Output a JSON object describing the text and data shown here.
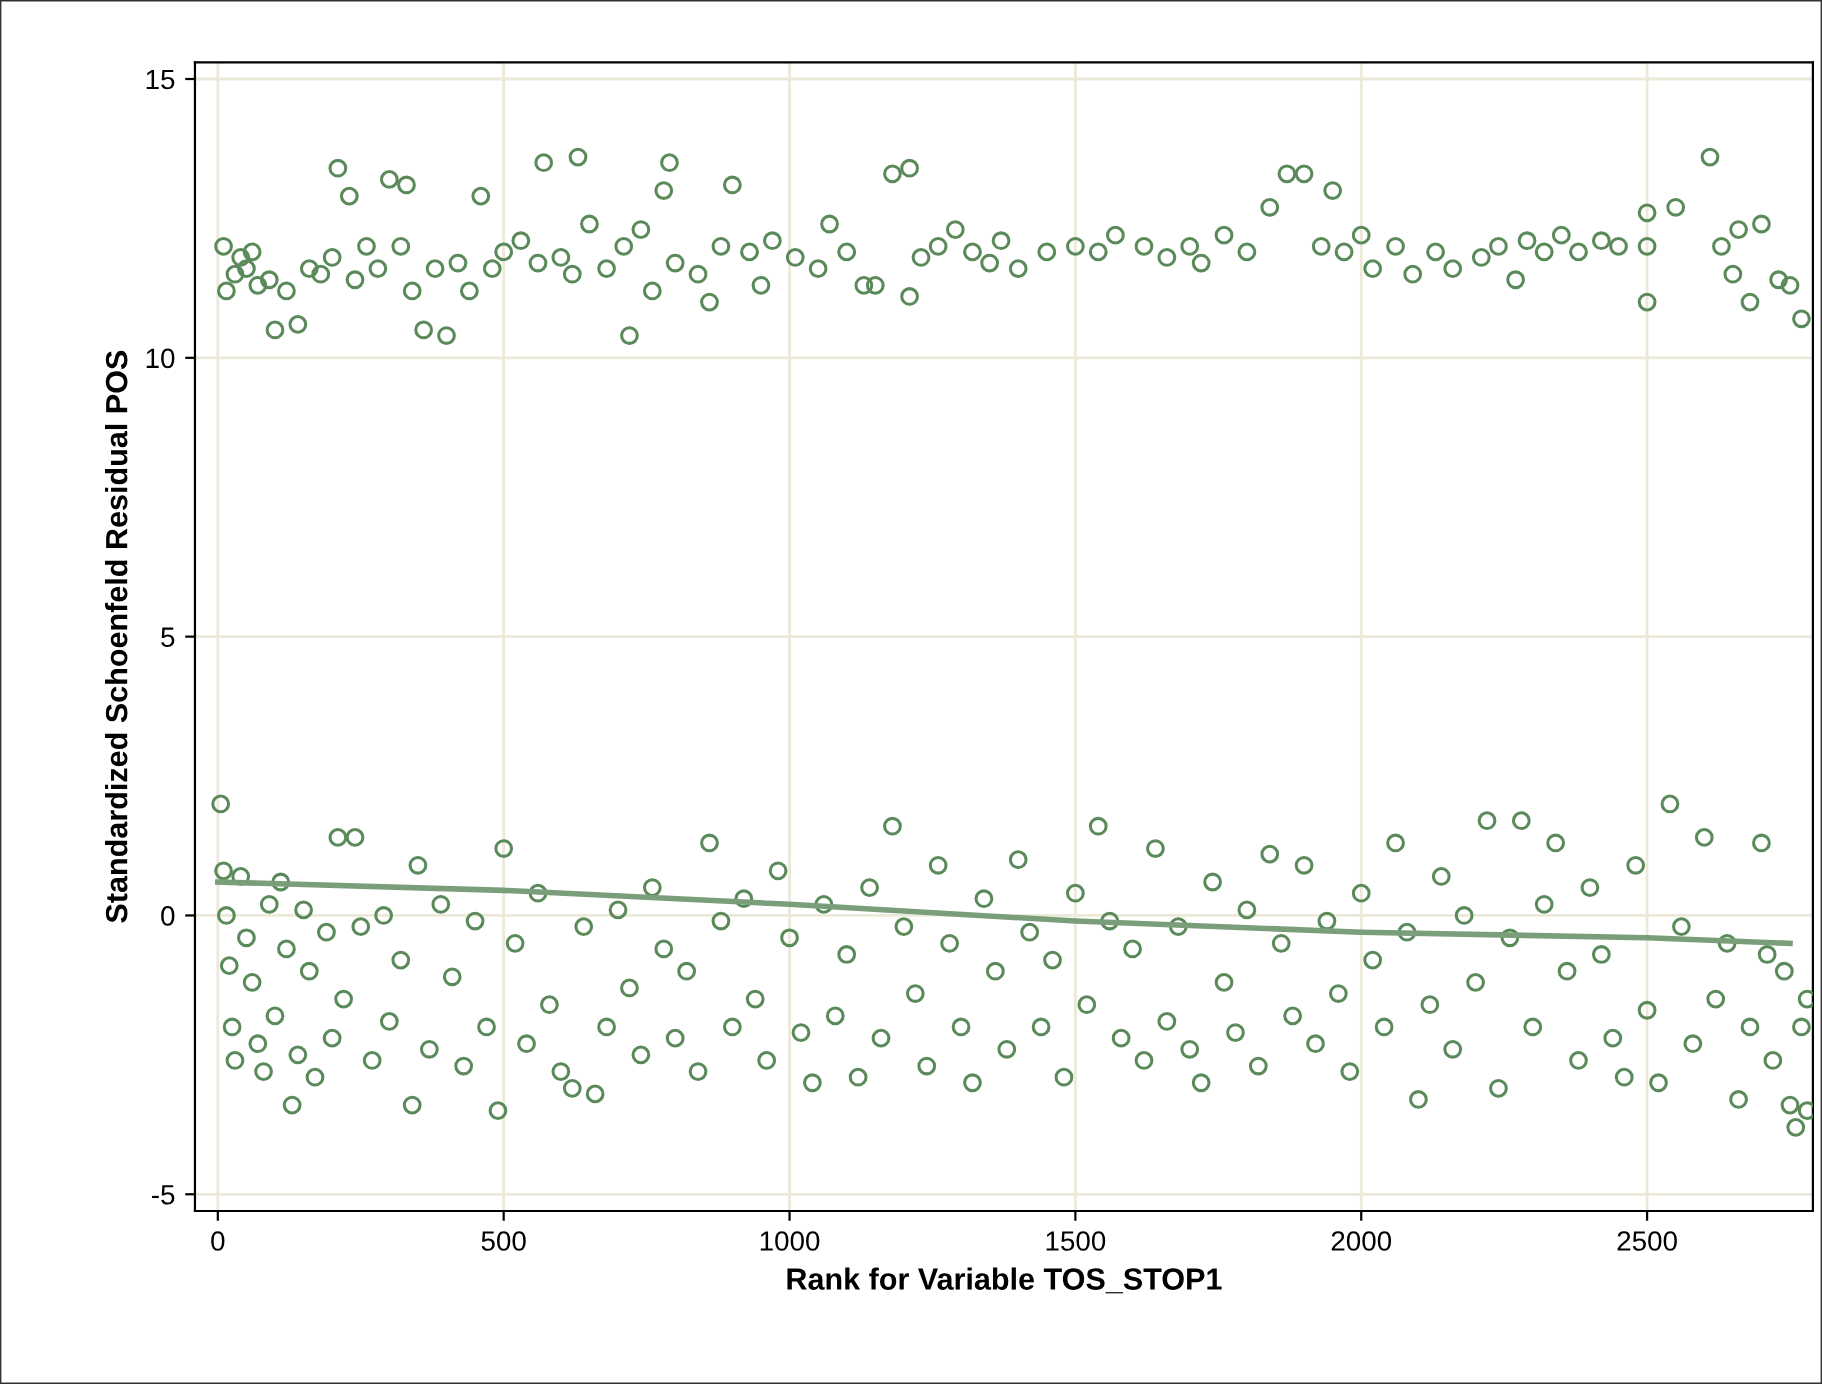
{
  "chart_data": {
    "type": "scatter",
    "xlabel": "Rank for Variable TOS_STOP1",
    "ylabel": "Standardized Schoenfeld Residual POS",
    "xlim": [
      -40,
      2790
    ],
    "ylim": [
      -5.3,
      15.3
    ],
    "xticks": [
      0,
      500,
      1000,
      1500,
      2000,
      2500
    ],
    "yticks": [
      -5,
      0,
      5,
      10,
      15
    ],
    "grid": true,
    "marker": "circle",
    "series": [
      {
        "color": "#5a8a5a",
        "x": [
          10,
          15,
          30,
          40,
          50,
          60,
          70,
          90,
          100,
          120,
          140,
          160,
          180,
          200,
          210,
          230,
          240,
          260,
          280,
          300,
          320,
          330,
          340,
          360,
          380,
          400,
          420,
          440,
          460,
          480,
          500,
          530,
          560,
          570,
          600,
          620,
          630,
          650,
          680,
          710,
          720,
          740,
          760,
          780,
          790,
          800,
          840,
          860,
          880,
          900,
          930,
          950,
          970,
          1010,
          1050,
          1070,
          1100,
          1130,
          1150,
          1180,
          1210,
          1210,
          1230,
          1260,
          1290,
          1320,
          1350,
          1370,
          1400,
          1450,
          1500,
          1540,
          1570,
          1620,
          1660,
          1700,
          1720,
          1760,
          1800,
          1840,
          1870,
          1900,
          1930,
          1950,
          1970,
          2000,
          2020,
          2060,
          2090,
          2130,
          2160,
          2210,
          2240,
          2270,
          2290,
          2320,
          2350,
          2380,
          2420,
          2450,
          2500,
          2500,
          2500,
          2550,
          2610,
          2630,
          2650,
          2660,
          2680,
          2700,
          2730,
          2750,
          2770
        ],
        "values": [
          12.0,
          11.2,
          11.5,
          11.8,
          11.6,
          11.9,
          11.3,
          11.4,
          10.5,
          11.2,
          10.6,
          11.6,
          11.5,
          11.8,
          13.4,
          12.9,
          11.4,
          12.0,
          11.6,
          13.2,
          12.0,
          13.1,
          11.2,
          10.5,
          11.6,
          10.4,
          11.7,
          11.2,
          12.9,
          11.6,
          11.9,
          12.1,
          11.7,
          13.5,
          11.8,
          11.5,
          13.6,
          12.4,
          11.6,
          12.0,
          10.4,
          12.3,
          11.2,
          13.0,
          13.5,
          11.7,
          11.5,
          11.0,
          12.0,
          13.1,
          11.9,
          11.3,
          12.1,
          11.8,
          11.6,
          12.4,
          11.9,
          11.3,
          11.3,
          13.3,
          13.4,
          11.1,
          11.8,
          12.0,
          12.3,
          11.9,
          11.7,
          12.1,
          11.6,
          11.9,
          12.0,
          11.9,
          12.2,
          12.0,
          11.8,
          12.0,
          11.7,
          12.2,
          11.9,
          12.7,
          13.3,
          13.3,
          12.0,
          13.0,
          11.9,
          12.2,
          11.6,
          12.0,
          11.5,
          11.9,
          11.6,
          11.8,
          12.0,
          11.4,
          12.1,
          11.9,
          12.2,
          11.9,
          12.1,
          12.0,
          12.6,
          11.0,
          12.0,
          12.7,
          13.6,
          12.0,
          11.5,
          12.3,
          11.0,
          12.4,
          11.4,
          11.3,
          10.7
        ]
      },
      {
        "color": "#5a8a5a",
        "x": [
          5,
          10,
          15,
          20,
          25,
          30,
          40,
          50,
          60,
          70,
          80,
          90,
          100,
          110,
          120,
          130,
          140,
          150,
          160,
          170,
          190,
          200,
          210,
          220,
          240,
          250,
          270,
          290,
          300,
          320,
          340,
          350,
          370,
          390,
          410,
          430,
          450,
          470,
          490,
          500,
          520,
          540,
          560,
          580,
          600,
          620,
          640,
          660,
          680,
          700,
          720,
          740,
          760,
          780,
          800,
          820,
          840,
          860,
          880,
          900,
          920,
          940,
          960,
          980,
          1000,
          1020,
          1040,
          1060,
          1080,
          1100,
          1120,
          1140,
          1160,
          1180,
          1200,
          1220,
          1240,
          1260,
          1280,
          1300,
          1320,
          1340,
          1360,
          1380,
          1400,
          1420,
          1440,
          1460,
          1480,
          1500,
          1520,
          1540,
          1560,
          1580,
          1600,
          1620,
          1640,
          1660,
          1680,
          1700,
          1720,
          1740,
          1760,
          1780,
          1800,
          1820,
          1840,
          1860,
          1880,
          1900,
          1920,
          1940,
          1960,
          1980,
          2000,
          2020,
          2040,
          2060,
          2080,
          2100,
          2120,
          2140,
          2160,
          2180,
          2200,
          2220,
          2240,
          2260,
          2280,
          2300,
          2320,
          2340,
          2360,
          2380,
          2400,
          2420,
          2440,
          2460,
          2480,
          2500,
          2520,
          2540,
          2560,
          2580,
          2600,
          2620,
          2640,
          2660,
          2680,
          2700,
          2710,
          2720,
          2740,
          2750,
          2760,
          2770,
          2780,
          2780
        ],
        "values": [
          2.0,
          0.8,
          0.0,
          -0.9,
          -2.0,
          -2.6,
          0.7,
          -0.4,
          -1.2,
          -2.3,
          -2.8,
          0.2,
          -1.8,
          0.6,
          -0.6,
          -3.4,
          -2.5,
          0.1,
          -1.0,
          -2.9,
          -0.3,
          -2.2,
          1.4,
          -1.5,
          1.4,
          -0.2,
          -2.6,
          0.0,
          -1.9,
          -0.8,
          -3.4,
          0.9,
          -2.4,
          0.2,
          -1.1,
          -2.7,
          -0.1,
          -2.0,
          -3.5,
          1.2,
          -0.5,
          -2.3,
          0.4,
          -1.6,
          -2.8,
          -3.1,
          -0.2,
          -3.2,
          -2.0,
          0.1,
          -1.3,
          -2.5,
          0.5,
          -0.6,
          -2.2,
          -1.0,
          -2.8,
          1.3,
          -0.1,
          -2.0,
          0.3,
          -1.5,
          -2.6,
          0.8,
          -0.4,
          -2.1,
          -3.0,
          0.2,
          -1.8,
          -0.7,
          -2.9,
          0.5,
          -2.2,
          1.6,
          -0.2,
          -1.4,
          -2.7,
          0.9,
          -0.5,
          -2.0,
          -3.0,
          0.3,
          -1.0,
          -2.4,
          1.0,
          -0.3,
          -2.0,
          -0.8,
          -2.9,
          0.4,
          -1.6,
          1.6,
          -0.1,
          -2.2,
          -0.6,
          -2.6,
          1.2,
          -1.9,
          -0.2,
          -2.4,
          -3.0,
          0.6,
          -1.2,
          -2.1,
          0.1,
          -2.7,
          1.1,
          -0.5,
          -1.8,
          0.9,
          -2.3,
          -0.1,
          -1.4,
          -2.8,
          0.4,
          -0.8,
          -2.0,
          1.3,
          -0.3,
          -3.3,
          -1.6,
          0.7,
          -2.4,
          0.0,
          -1.2,
          1.7,
          -3.1,
          -0.4,
          1.7,
          -2.0,
          0.2,
          1.3,
          -1.0,
          -2.6,
          0.5,
          -0.7,
          -2.2,
          -2.9,
          0.9,
          -1.7,
          -3.0,
          2.0,
          -0.2,
          -2.3,
          1.4,
          -1.5,
          -0.5,
          -3.3,
          -2.0,
          1.3,
          -0.7,
          -2.6,
          -1.0,
          -3.4,
          -3.8,
          -2.0,
          -3.5,
          -1.5
        ]
      },
      {
        "type": "line",
        "marker": "none",
        "color": "#7a9e7a",
        "x": [
          0,
          500,
          1000,
          1500,
          2000,
          2500,
          2750
        ],
        "values": [
          0.6,
          0.45,
          0.2,
          -0.1,
          -0.3,
          -0.4,
          -0.5
        ]
      }
    ]
  }
}
